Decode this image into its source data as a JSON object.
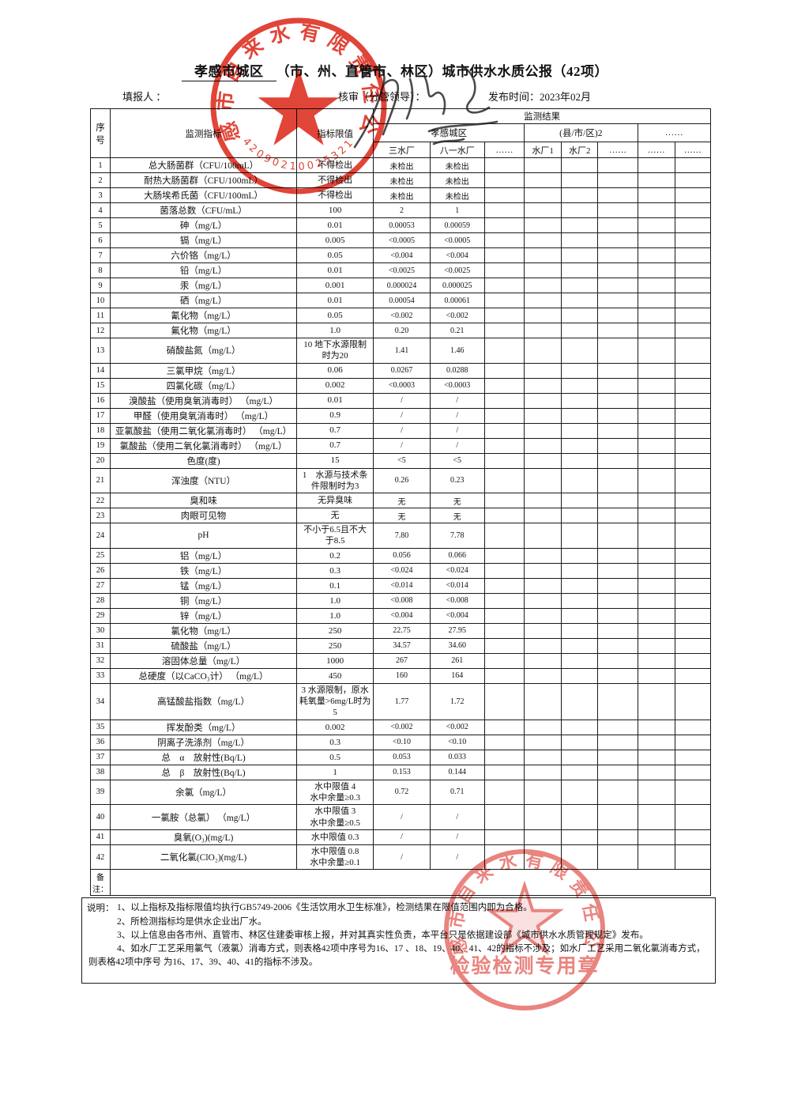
{
  "page": {
    "title_underlined": "孝感市城区",
    "title_rest": "（市、州、直管市、林区）城市供水水质公报（42项）",
    "filler_label": "填报人 ：",
    "reviewer_label": "核审（分管领导）：",
    "publish_label": "发布时间：2023年02月"
  },
  "table": {
    "headers": {
      "no": "序号",
      "indicator": "监测指标",
      "limit": "指标限值",
      "result": "监测结果"
    },
    "groups": [
      {
        "label": "孝感城区",
        "plants": [
          "三水厂",
          "八一水厂",
          "……"
        ]
      },
      {
        "label": "(县/市/区)2",
        "plants": [
          "水厂1",
          "水厂2",
          "……"
        ]
      },
      {
        "label": "……",
        "plants": [
          "……",
          "……"
        ]
      }
    ],
    "remark_label": "备注：",
    "rows": [
      {
        "no": "1",
        "name": "总大肠菌群（CFU/100mL）",
        "limit": "不得检出",
        "values": [
          "未检出",
          "未检出"
        ]
      },
      {
        "no": "2",
        "name": "耐热大肠菌群（CFU/100mL）",
        "limit": "不得检出",
        "values": [
          "未检出",
          "未检出"
        ]
      },
      {
        "no": "3",
        "name": "大肠埃希氏菌（CFU/100mL）",
        "limit": "不得检出",
        "values": [
          "未检出",
          "未检出"
        ]
      },
      {
        "no": "4",
        "name": "菌落总数（CFU/mL）",
        "limit": "100",
        "values": [
          "2",
          "1"
        ]
      },
      {
        "no": "5",
        "name": "砷（mg/L）",
        "limit": "0.01",
        "values": [
          "0.00053",
          "0.00059"
        ]
      },
      {
        "no": "6",
        "name": "镉（mg/L）",
        "limit": "0.005",
        "values": [
          "<0.0005",
          "<0.0005"
        ]
      },
      {
        "no": "7",
        "name": "六价铬（mg/L）",
        "limit": "0.05",
        "values": [
          "<0.004",
          "<0.004"
        ]
      },
      {
        "no": "8",
        "name": "铅（mg/L）",
        "limit": "0.01",
        "values": [
          "<0.0025",
          "<0.0025"
        ]
      },
      {
        "no": "9",
        "name": "汞（mg/L）",
        "limit": "0.001",
        "values": [
          "0.000024",
          "0.000025"
        ]
      },
      {
        "no": "10",
        "name": "硒（mg/L）",
        "limit": "0.01",
        "values": [
          "0.00054",
          "0.00061"
        ]
      },
      {
        "no": "11",
        "name": "氰化物（mg/L）",
        "limit": "0.05",
        "values": [
          "<0.002",
          "<0.002"
        ]
      },
      {
        "no": "12",
        "name": "氟化物（mg/L）",
        "limit": "1.0",
        "values": [
          "0.20",
          "0.21"
        ]
      },
      {
        "no": "13",
        "name": "硝酸盐氮（mg/L）",
        "limit": "10 地下水源限制\n时为20",
        "values": [
          "1.41",
          "1.46"
        ]
      },
      {
        "no": "14",
        "name": "三氯甲烷（mg/L）",
        "limit": "0.06",
        "values": [
          "0.0267",
          "0.0288"
        ]
      },
      {
        "no": "15",
        "name": "四氯化碳（mg/L）",
        "limit": "0.002",
        "values": [
          "<0.0003",
          "<0.0003"
        ]
      },
      {
        "no": "16",
        "name": "溴酸盐（使用臭氧消毒时） （mg/L）",
        "limit": "0.01",
        "values": [
          "/",
          "/"
        ]
      },
      {
        "no": "17",
        "name": "甲醛（使用臭氧消毒时） （mg/L）",
        "limit": "0.9",
        "values": [
          "/",
          "/"
        ]
      },
      {
        "no": "18",
        "name": "亚氯酸盐（使用二氧化氯消毒时） （mg/L）",
        "limit": "0.7",
        "values": [
          "/",
          "/"
        ]
      },
      {
        "no": "19",
        "name": "氯酸盐（使用二氧化氯消毒时） （mg/L）",
        "limit": "0.7",
        "values": [
          "/",
          "/"
        ]
      },
      {
        "no": "20",
        "name": "色度(度)",
        "limit": "15",
        "values": [
          "<5",
          "<5"
        ]
      },
      {
        "no": "21",
        "name": "浑浊度（NTU）",
        "limit": "1　水源与技术条\n件限制时为3",
        "values": [
          "0.26",
          "0.23"
        ]
      },
      {
        "no": "22",
        "name": "臭和味",
        "limit": "无异臭味",
        "values": [
          "无",
          "无"
        ]
      },
      {
        "no": "23",
        "name": "肉眼可见物",
        "limit": "无",
        "values": [
          "无",
          "无"
        ]
      },
      {
        "no": "24",
        "name": "pH",
        "limit": "不小于6.5且不大\n于8.5",
        "values": [
          "7.80",
          "7.78"
        ]
      },
      {
        "no": "25",
        "name": "铝（mg/L）",
        "limit": "0.2",
        "values": [
          "0.056",
          "0.066"
        ]
      },
      {
        "no": "26",
        "name": "铁（mg/L）",
        "limit": "0.3",
        "values": [
          "<0.024",
          "<0.024"
        ]
      },
      {
        "no": "27",
        "name": "锰（mg/L）",
        "limit": "0.1",
        "values": [
          "<0.014",
          "<0.014"
        ]
      },
      {
        "no": "28",
        "name": "铜（mg/L）",
        "limit": "1.0",
        "values": [
          "<0.008",
          "<0.008"
        ]
      },
      {
        "no": "29",
        "name": "锌（mg/L）",
        "limit": "1.0",
        "values": [
          "<0.004",
          "<0.004"
        ]
      },
      {
        "no": "30",
        "name": "氯化物（mg/L）",
        "limit": "250",
        "values": [
          "22.75",
          "27.95"
        ]
      },
      {
        "no": "31",
        "name": "硫酸盐（mg/L）",
        "limit": "250",
        "values": [
          "34.57",
          "34.60"
        ]
      },
      {
        "no": "32",
        "name": "溶固体总量（mg/L）",
        "limit": "1000",
        "values": [
          "267",
          "261"
        ]
      },
      {
        "no": "33",
        "name": "总硬度（以CaCO₃计） （mg/L）",
        "limit": "450",
        "values": [
          "160",
          "164"
        ]
      },
      {
        "no": "34",
        "name": "高锰酸盐指数（mg/L）",
        "limit": "3 水源限制，原水\n耗氧量>6mg/L时为\n5",
        "values": [
          "1.77",
          "1.72"
        ]
      },
      {
        "no": "35",
        "name": "挥发酚类（mg/L）",
        "limit": "0.002",
        "values": [
          "<0.002",
          "<0.002"
        ]
      },
      {
        "no": "36",
        "name": "阴离子洗涤剂（mg/L）",
        "limit": "0.3",
        "values": [
          "<0.10",
          "<0.10"
        ]
      },
      {
        "no": "37",
        "name": "总　α　放射性(Bq/L)",
        "limit": "0.5",
        "values": [
          "0.053",
          "0.033"
        ]
      },
      {
        "no": "38",
        "name": "总　β　放射性(Bq/L)",
        "limit": "1",
        "values": [
          "0.153",
          "0.144"
        ]
      },
      {
        "no": "39",
        "name": "余氯（mg/L）",
        "limit": "水中限值 4\n水中余量≥0.3",
        "values": [
          "0.72",
          "0.71"
        ]
      },
      {
        "no": "40",
        "name": "一氯胺（总氯） （mg/L）",
        "limit": "水中限值 3\n水中余量≥0.5",
        "values": [
          "/",
          "/"
        ]
      },
      {
        "no": "41",
        "name": "臭氧(O₃)(mg/L)",
        "limit": "水中限值 0.3",
        "values": [
          "/",
          "/"
        ]
      },
      {
        "no": "42",
        "name": "二氧化氯(ClO₂)(mg/L)",
        "limit": "水中限值 0.8\n水中余量≥0.1",
        "values": [
          "/",
          "/"
        ]
      }
    ]
  },
  "notes": {
    "label": "说明：",
    "items": [
      "1、以上指标及指标限值均执行GB5749-2006《生活饮用水卫生标准》，检测结果在限值范围内即为合格。",
      "2、所检测指标均是供水企业出厂水。",
      "3、以上信息由各市州、直管市、林区住建委审核上报，并对其真实性负责，本平台只是依据建设部《城市供水水质管理规定》发布。",
      "4、如水厂工艺采用氯气（液氯）消毒方式，则表格42项中序号为16、17 、18、19、40、41、42的指标不涉及；如水厂工艺采用二氧化氯消毒方式，则表格42项中序号 为16、17、39、40、41的指标不涉及。"
    ]
  },
  "stamps": {
    "top": {
      "arc_text": "孝感市自来水有限责任公司",
      "code": "42090210025321",
      "color": "#dd2b1c"
    },
    "bottom": {
      "arc_text": "孝感市自来水有限责任公司",
      "label": "检验检测专用章",
      "color": "#e4655f"
    }
  }
}
